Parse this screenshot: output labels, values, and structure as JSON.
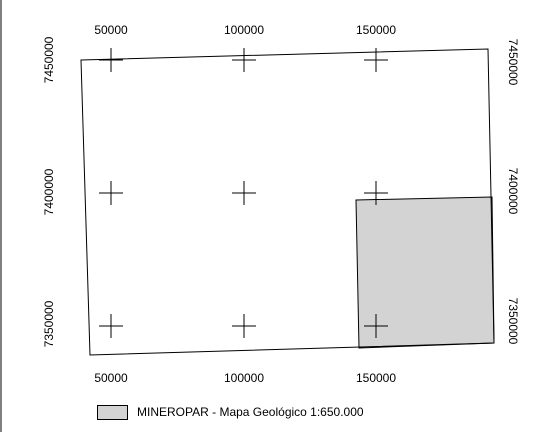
{
  "map": {
    "x_axis_labels": [
      "50000",
      "100000",
      "150000"
    ],
    "y_axis_labels": [
      "7450000",
      "7400000",
      "7350000"
    ],
    "colors": {
      "frame": "#000000",
      "shaded_area": "#d3d3d3",
      "background": "#ffffff"
    },
    "grid": "crosshair markers at each labelled easting/northing intersection"
  },
  "legend": {
    "label": "MINEROPAR - Mapa Geológico 1:650.000",
    "swatch_color": "#d3d3d3"
  }
}
